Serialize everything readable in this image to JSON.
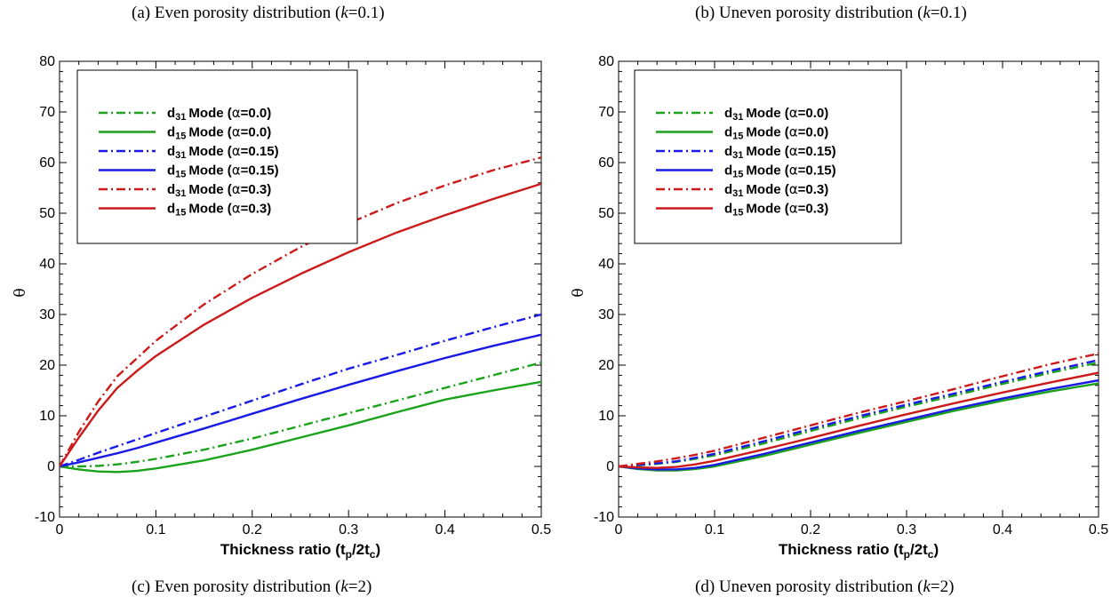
{
  "captions": {
    "a": {
      "prefix": "(a) Even porosity distribution (",
      "k": "k",
      "suffix": "=0.1)"
    },
    "b": {
      "prefix": "(b) Uneven porosity distribution (",
      "k": "k",
      "suffix": "=0.1)"
    },
    "c": {
      "prefix": "(c) Even porosity distribution (",
      "k": "k",
      "suffix": "=2)"
    },
    "d": {
      "prefix": "(d) Uneven porosity distribution (",
      "k": "k",
      "suffix": "=2)"
    }
  },
  "chart_data": [
    {
      "type": "line",
      "xlabel": "Thickness ratio (t_p/2t_c)",
      "ylabel": "θ",
      "xlim": [
        0,
        0.5
      ],
      "ylim": [
        -10,
        80
      ],
      "xticks": [
        0,
        0.1,
        0.2,
        0.3,
        0.4,
        0.5
      ],
      "yticks": [
        -10,
        0,
        10,
        20,
        30,
        40,
        50,
        60,
        70,
        80
      ],
      "legend_position": "top-left",
      "x": [
        0,
        0.02,
        0.04,
        0.06,
        0.08,
        0.1,
        0.15,
        0.2,
        0.25,
        0.3,
        0.35,
        0.4,
        0.45,
        0.5
      ],
      "series": [
        {
          "name": "d31 Mode (α=0.0)",
          "mode": "31",
          "alpha": "0.0",
          "color": "#1aa31a",
          "dash": "dashdot",
          "values": [
            0,
            0,
            0.1,
            0.4,
            0.9,
            1.5,
            3.3,
            5.5,
            8.0,
            10.5,
            13.0,
            15.5,
            18.0,
            20.5
          ]
        },
        {
          "name": "d15 Mode (α=0.0)",
          "mode": "15",
          "alpha": "0.0",
          "color": "#1aa31a",
          "dash": "solid",
          "values": [
            0,
            -0.6,
            -1.0,
            -1.1,
            -0.9,
            -0.4,
            1.2,
            3.3,
            5.7,
            8.1,
            10.7,
            13.2,
            15.0,
            16.7
          ]
        },
        {
          "name": "d31 Mode (α=0.15)",
          "mode": "31",
          "alpha": "0.15",
          "color": "#1a1ae6",
          "dash": "dashdot",
          "values": [
            0,
            1.3,
            2.7,
            4.0,
            5.3,
            6.6,
            9.8,
            13.0,
            16.2,
            19.3,
            22.0,
            24.8,
            27.5,
            30.0
          ]
        },
        {
          "name": "d15 Mode (α=0.15)",
          "mode": "15",
          "alpha": "0.15",
          "color": "#1a1ae6",
          "dash": "solid",
          "values": [
            0,
            0.8,
            1.7,
            2.6,
            3.6,
            4.7,
            7.5,
            10.4,
            13.3,
            16.1,
            18.8,
            21.4,
            23.8,
            26.0
          ]
        },
        {
          "name": "d31 Mode (α=0.3)",
          "mode": "31",
          "alpha": "0.3",
          "color": "#cc1a1a",
          "dash": "dashdot",
          "values": [
            0,
            6.8,
            12.8,
            17.8,
            21.3,
            24.8,
            32.0,
            38.0,
            43.3,
            48.0,
            52.0,
            55.5,
            58.5,
            61.0
          ]
        },
        {
          "name": "d15 Mode (α=0.3)",
          "mode": "15",
          "alpha": "0.3",
          "color": "#cc1a1a",
          "dash": "solid",
          "values": [
            0,
            5.7,
            11.0,
            15.5,
            18.8,
            21.8,
            28.0,
            33.3,
            38.0,
            42.3,
            46.2,
            49.6,
            52.8,
            55.8
          ]
        }
      ]
    },
    {
      "type": "line",
      "xlabel": "Thickness ratio (t_p/2t_c)",
      "ylabel": "θ",
      "xlim": [
        0,
        0.5
      ],
      "ylim": [
        -10,
        80
      ],
      "xticks": [
        0,
        0.1,
        0.2,
        0.3,
        0.4,
        0.5
      ],
      "yticks": [
        -10,
        0,
        10,
        20,
        30,
        40,
        50,
        60,
        70,
        80
      ],
      "legend_position": "top-left",
      "x": [
        0,
        0.02,
        0.04,
        0.06,
        0.08,
        0.1,
        0.15,
        0.2,
        0.25,
        0.3,
        0.35,
        0.4,
        0.45,
        0.5
      ],
      "series": [
        {
          "name": "d31 Mode (α=0.0)",
          "mode": "31",
          "alpha": "0.0",
          "color": "#1aa31a",
          "dash": "dashdot",
          "values": [
            0,
            0.2,
            0.5,
            0.9,
            1.5,
            2.2,
            4.5,
            7.0,
            9.5,
            11.8,
            14.0,
            16.3,
            18.5,
            20.5
          ]
        },
        {
          "name": "d15 Mode (α=0.0)",
          "mode": "15",
          "alpha": "0.0",
          "color": "#1aa31a",
          "dash": "solid",
          "values": [
            0,
            -0.5,
            -0.8,
            -0.8,
            -0.5,
            0,
            2.0,
            4.3,
            6.6,
            8.8,
            11.0,
            13.0,
            14.8,
            16.4
          ]
        },
        {
          "name": "d31 Mode (α=0.15)",
          "mode": "31",
          "alpha": "0.15",
          "color": "#1a1ae6",
          "dash": "dashdot",
          "values": [
            0,
            0.3,
            0.6,
            1.0,
            1.7,
            2.5,
            4.9,
            7.4,
            9.9,
            12.2,
            14.4,
            16.7,
            18.9,
            21.0
          ]
        },
        {
          "name": "d15 Mode (α=0.15)",
          "mode": "15",
          "alpha": "0.15",
          "color": "#1a1ae6",
          "dash": "solid",
          "values": [
            0,
            -0.4,
            -0.6,
            -0.6,
            -0.3,
            0.3,
            2.4,
            4.7,
            7.0,
            9.2,
            11.4,
            13.4,
            15.3,
            17.0
          ]
        },
        {
          "name": "d31 Mode (α=0.3)",
          "mode": "31",
          "alpha": "0.3",
          "color": "#cc1a1a",
          "dash": "dashdot",
          "values": [
            0,
            0.5,
            1.0,
            1.6,
            2.3,
            3.1,
            5.6,
            8.1,
            10.6,
            12.9,
            15.3,
            17.8,
            20.2,
            22.3
          ]
        },
        {
          "name": "d15 Mode (α=0.3)",
          "mode": "15",
          "alpha": "0.3",
          "color": "#cc1a1a",
          "dash": "solid",
          "values": [
            0,
            -0.2,
            -0.3,
            -0.1,
            0.4,
            1.1,
            3.3,
            5.6,
            8.0,
            10.3,
            12.5,
            14.6,
            16.6,
            18.5
          ]
        }
      ]
    }
  ]
}
